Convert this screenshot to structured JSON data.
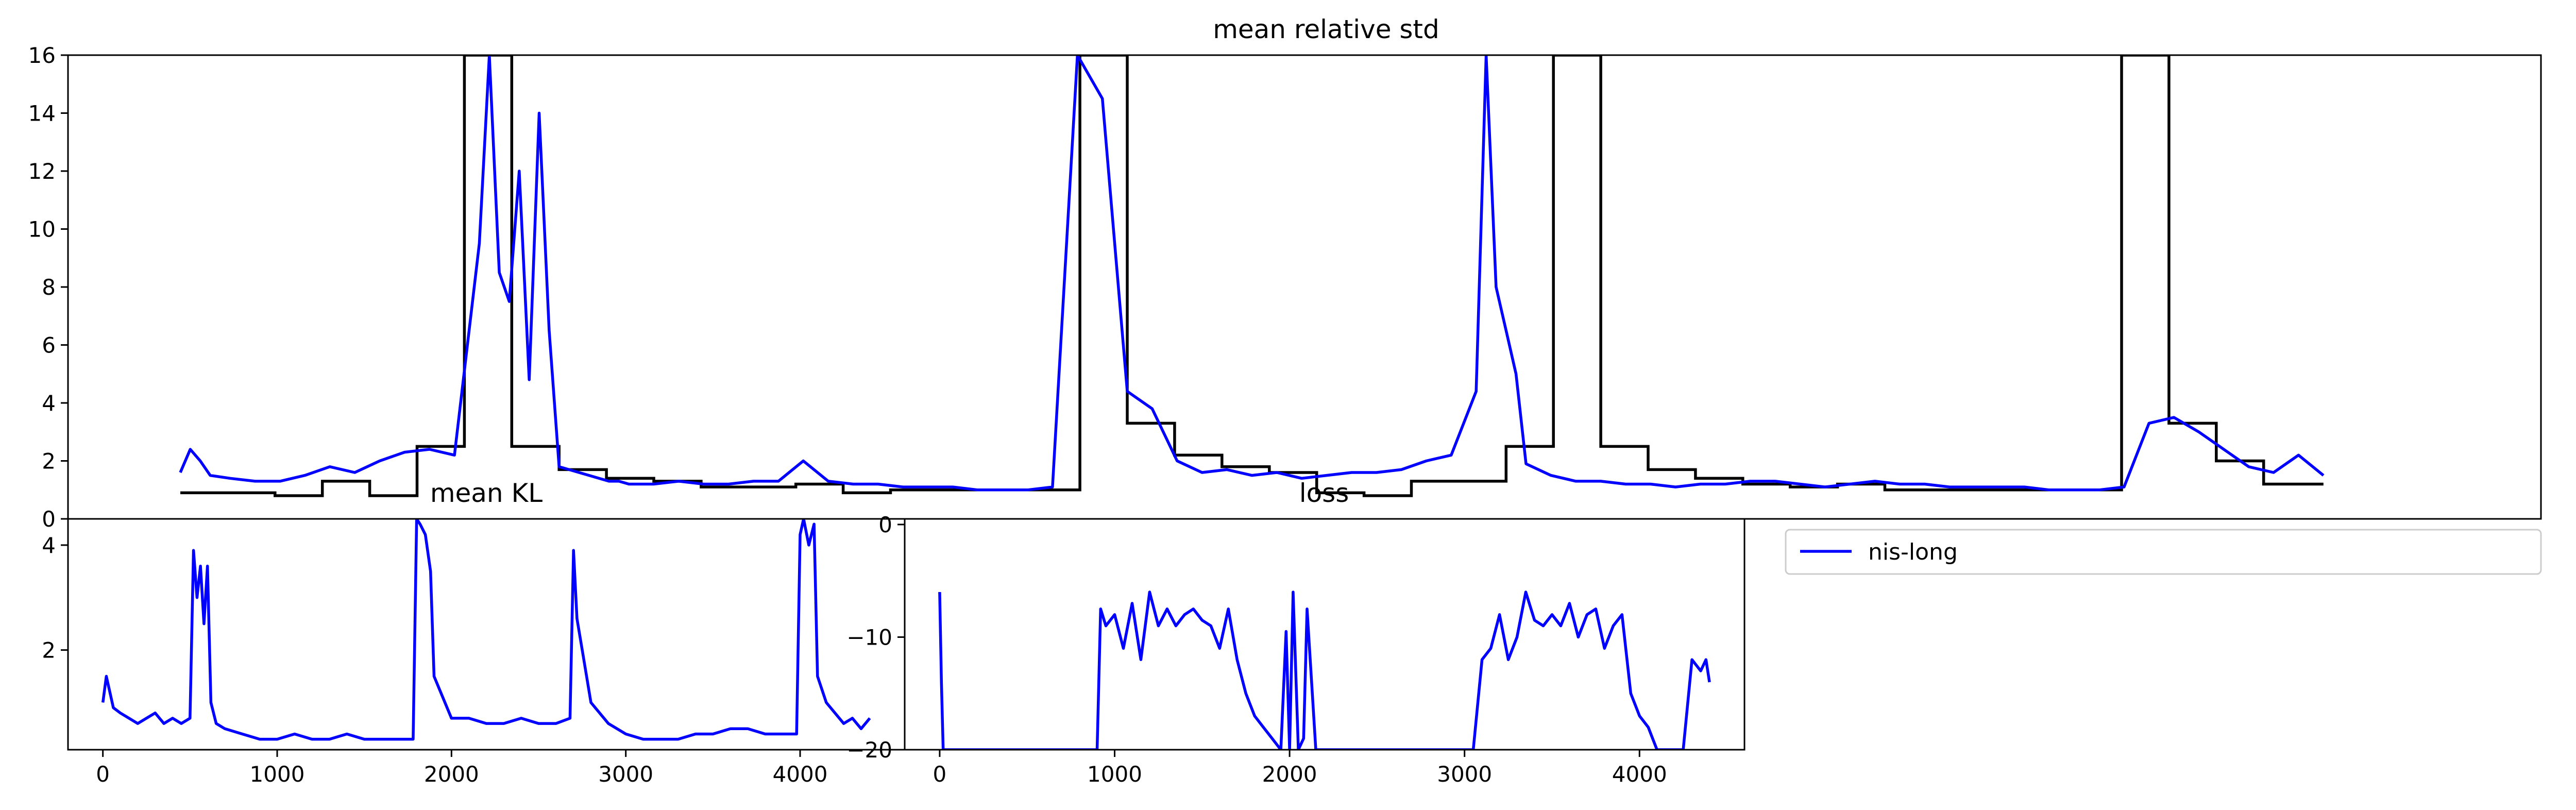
{
  "legend": {
    "entries": [
      {
        "label": "nis-long",
        "color": "#0000ff"
      }
    ]
  },
  "chart_data": [
    {
      "id": "top",
      "type": "line",
      "title": "mean relative std",
      "xlabel": "",
      "ylabel": "",
      "xlim": [
        0,
        4600
      ],
      "ylim": [
        0,
        16
      ],
      "yticks": [
        0,
        2,
        4,
        6,
        8,
        10,
        12,
        14,
        16
      ],
      "grid": false,
      "series": [
        {
          "color": "#0000ff",
          "x": [
            0,
            20,
            40,
            60,
            100,
            150,
            200,
            250,
            300,
            350,
            400,
            450,
            500,
            550,
            600,
            620,
            640,
            660,
            680,
            700,
            720,
            740,
            760,
            780,
            800,
            820,
            840,
            860,
            880,
            900,
            950,
            1000,
            1050,
            1100,
            1150,
            1200,
            1250,
            1300,
            1350,
            1400,
            1450,
            1500,
            1550,
            1600,
            1650,
            1700,
            1750,
            1800,
            1850,
            1900,
            1950,
            2000,
            2050,
            2100,
            2150,
            2200,
            2250,
            2300,
            2350,
            2400,
            2450,
            2500,
            2550,
            2600,
            2620,
            2640,
            2660,
            2680,
            2700,
            2750,
            2800,
            2850,
            2900,
            2950,
            3000,
            3050,
            3100,
            3150,
            3200,
            3250,
            3300,
            3350,
            3400,
            3450,
            3500,
            3550,
            3600,
            3650,
            3700,
            3750,
            3800,
            3850,
            3900,
            3950,
            4000,
            4050,
            4100,
            4150,
            4200,
            4250,
            4300
          ],
          "y": [
            1.6,
            2.4,
            2.0,
            1.5,
            1.4,
            1.3,
            1.3,
            1.5,
            1.8,
            1.6,
            2.0,
            2.3,
            2.4,
            2.2,
            9.5,
            16,
            8.5,
            7.5,
            12.0,
            4.8,
            14.0,
            6.5,
            1.8,
            1.7,
            1.6,
            1.5,
            1.4,
            1.3,
            1.3,
            1.2,
            1.2,
            1.3,
            1.2,
            1.2,
            1.3,
            1.3,
            2.0,
            1.3,
            1.2,
            1.2,
            1.1,
            1.1,
            1.1,
            1.0,
            1.0,
            1.0,
            1.1,
            16,
            14.5,
            4.4,
            3.8,
            2.0,
            1.6,
            1.7,
            1.5,
            1.6,
            1.4,
            1.5,
            1.6,
            1.6,
            1.7,
            2.0,
            2.2,
            4.4,
            16,
            8.0,
            6.5,
            5.0,
            1.9,
            1.5,
            1.3,
            1.3,
            1.2,
            1.2,
            1.1,
            1.2,
            1.2,
            1.3,
            1.3,
            1.2,
            1.1,
            1.2,
            1.3,
            1.2,
            1.2,
            1.1,
            1.1,
            1.1,
            1.1,
            1.0,
            1.0,
            1.0,
            1.1,
            3.3,
            3.5,
            3.0,
            2.4,
            1.8,
            1.6,
            2.2,
            1.5
          ]
        },
        {
          "color": "#000000",
          "drawstyle": "steps-post",
          "x": [
            0,
            95,
            190,
            285,
            380,
            475,
            570,
            665,
            760,
            855,
            950,
            1045,
            1140,
            1235,
            1330,
            1425,
            1520,
            1615,
            1710,
            1805,
            1900,
            1995,
            2090,
            2185,
            2280,
            2375,
            2470,
            2565,
            2660,
            2755,
            2850,
            2945,
            3040,
            3135,
            3230,
            3325,
            3420,
            3515,
            3610,
            3705,
            3800,
            3895,
            3990,
            4085,
            4180,
            4300
          ],
          "y": [
            0.9,
            0.9,
            0.8,
            1.3,
            0.8,
            2.5,
            16,
            2.5,
            1.7,
            1.4,
            1.3,
            1.1,
            1.1,
            1.2,
            0.9,
            1.0,
            1.0,
            1.0,
            1.0,
            16,
            3.3,
            2.2,
            1.8,
            1.6,
            0.9,
            0.8,
            1.3,
            1.3,
            2.5,
            16,
            2.5,
            1.7,
            1.4,
            1.2,
            1.1,
            1.2,
            1.0,
            1.0,
            1.0,
            1.0,
            1.0,
            16,
            3.3,
            2.0,
            1.2,
            1.2
          ]
        }
      ]
    },
    {
      "id": "kl",
      "type": "line",
      "title": "mean KL",
      "xlabel": "",
      "ylabel": "",
      "xlim": [
        -200,
        4600
      ],
      "ylim": [
        0.1,
        4.5
      ],
      "xticks": [
        0,
        1000,
        2000,
        3000,
        4000
      ],
      "yticks": [
        2,
        4
      ],
      "grid": false,
      "series": [
        {
          "color": "#0000ff",
          "x": [
            0,
            20,
            40,
            60,
            100,
            150,
            200,
            250,
            300,
            350,
            400,
            450,
            500,
            520,
            540,
            560,
            580,
            600,
            620,
            650,
            700,
            800,
            900,
            1000,
            1100,
            1200,
            1300,
            1400,
            1500,
            1600,
            1700,
            1780,
            1800,
            1820,
            1850,
            1880,
            1900,
            1950,
            2000,
            2100,
            2200,
            2300,
            2400,
            2500,
            2600,
            2680,
            2700,
            2720,
            2750,
            2800,
            2900,
            3000,
            3100,
            3200,
            3300,
            3400,
            3500,
            3600,
            3700,
            3800,
            3900,
            3980,
            4000,
            4020,
            4050,
            4080,
            4100,
            4150,
            4200,
            4250,
            4300,
            4350,
            4400
          ],
          "y": [
            1.0,
            1.5,
            1.2,
            0.9,
            0.8,
            0.7,
            0.6,
            0.7,
            0.8,
            0.6,
            0.7,
            0.6,
            0.7,
            3.9,
            3.0,
            3.6,
            2.5,
            3.6,
            1.0,
            0.6,
            0.5,
            0.4,
            0.3,
            0.3,
            0.4,
            0.3,
            0.3,
            0.4,
            0.3,
            0.3,
            0.3,
            0.3,
            4.5,
            4.4,
            4.2,
            3.5,
            1.5,
            1.1,
            0.7,
            0.7,
            0.6,
            0.6,
            0.7,
            0.6,
            0.6,
            0.7,
            3.9,
            2.6,
            2.0,
            1.0,
            0.6,
            0.4,
            0.3,
            0.3,
            0.3,
            0.4,
            0.4,
            0.5,
            0.5,
            0.4,
            0.4,
            0.4,
            4.2,
            4.5,
            4.0,
            4.4,
            1.5,
            1.0,
            0.8,
            0.6,
            0.7,
            0.5,
            0.7
          ]
        }
      ]
    },
    {
      "id": "loss",
      "type": "line",
      "title": "loss",
      "xlabel": "",
      "ylabel": "",
      "xlim": [
        -200,
        4600
      ],
      "ylim": [
        -20,
        0.5
      ],
      "xticks": [
        0,
        1000,
        2000,
        3000,
        4000
      ],
      "yticks": [
        -20,
        -10,
        0
      ],
      "grid": false,
      "series": [
        {
          "color": "#0000ff",
          "x": [
            0,
            10,
            20,
            30,
            40,
            60,
            100,
            150,
            200,
            250,
            350,
            400,
            450,
            500,
            550,
            600,
            700,
            800,
            850,
            880,
            900,
            920,
            950,
            1000,
            1050,
            1100,
            1150,
            1200,
            1250,
            1300,
            1350,
            1400,
            1450,
            1500,
            1550,
            1600,
            1650,
            1700,
            1750,
            1800,
            1850,
            1900,
            1950,
            1980,
            2000,
            2020,
            2050,
            2080,
            2100,
            2150,
            2200,
            2250,
            2700,
            2800,
            2850,
            2900,
            2950,
            3000,
            3050,
            3100,
            3150,
            3200,
            3250,
            3300,
            3350,
            3400,
            3450,
            3500,
            3550,
            3600,
            3650,
            3700,
            3750,
            3800,
            3850,
            3900,
            3950,
            4000,
            4050,
            4100,
            4150,
            4200,
            4250,
            4300,
            4350,
            4380,
            4400
          ],
          "y": [
            -6,
            -14,
            -20,
            -20,
            -20,
            -20,
            -20,
            -20,
            -20,
            -20,
            -20,
            -20,
            -20,
            -20,
            -20,
            -20,
            -20,
            -20,
            -20,
            -20,
            -20,
            -7.5,
            -9,
            -8,
            -11,
            -7,
            -12,
            -6,
            -9,
            -7.5,
            -9,
            -8,
            -7.5,
            -8.5,
            -9,
            -11,
            -7.5,
            -12,
            -15,
            -17,
            -18,
            -19,
            -20,
            -9.5,
            -20,
            -6,
            -20,
            -19,
            -7.5,
            -20,
            -20,
            -20,
            -20,
            -20,
            -20,
            -20,
            -20,
            -20,
            -20,
            -12,
            -11,
            -8,
            -12,
            -10,
            -6,
            -8.5,
            -9,
            -8,
            -9,
            -7,
            -10,
            -8,
            -7.5,
            -11,
            -9,
            -8,
            -15,
            -17,
            -18,
            -20,
            -20,
            -20,
            -20,
            -12,
            -13,
            -12,
            -14
          ]
        }
      ]
    }
  ]
}
